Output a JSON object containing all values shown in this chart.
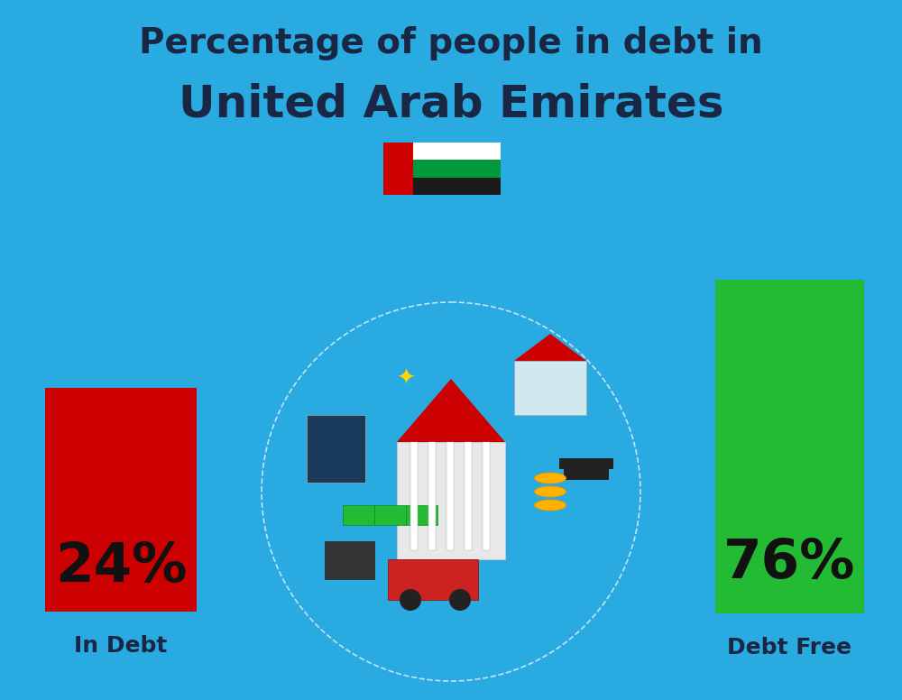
{
  "background_color": "#29ABE2",
  "title_line1": "Percentage of people in debt in",
  "title_line2": "United Arab Emirates",
  "title_color": "#1a2744",
  "title_fontsize1": 28,
  "title_fontsize2": 36,
  "bar_left_value": "24%",
  "bar_right_value": "76%",
  "bar_left_label": "In Debt",
  "bar_right_label": "Debt Free",
  "bar_left_color": "#CC0000",
  "bar_right_color": "#22BB33",
  "bar_text_color": "#111111",
  "bar_label_color": "#1a2744",
  "bar_percent_fontsize": 44,
  "bar_label_fontsize": 18,
  "flag_colors": [
    "#CC0000",
    "#ffffff",
    "#009a3d",
    "#1a1a1a"
  ],
  "center_circle_color": "#ffffff",
  "dashed_circle_color": "#dddddd"
}
